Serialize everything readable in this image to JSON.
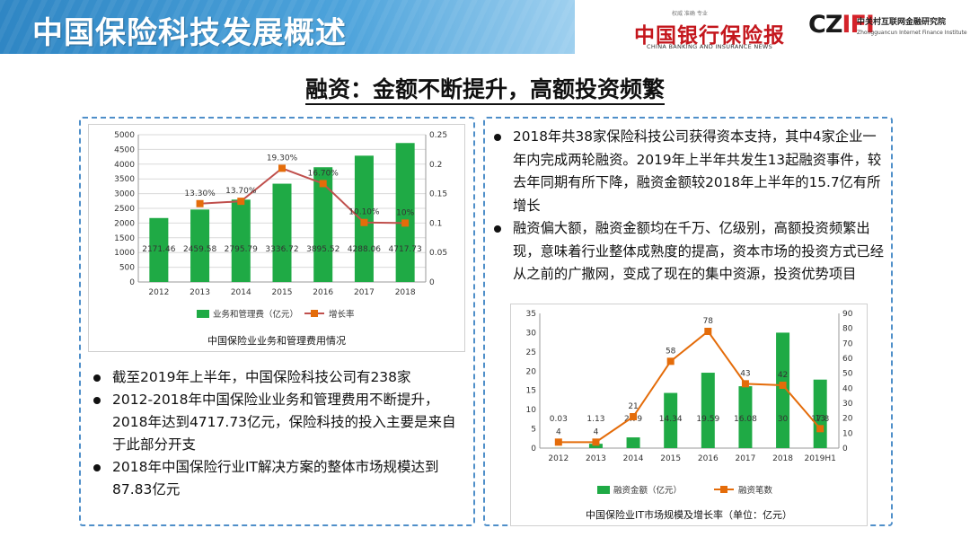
{
  "header": {
    "title": "中国保险科技发展概述"
  },
  "logos": {
    "cbin_tagline": "权威 准确 专业",
    "cbin_name": "中国银行保险报",
    "cbin_en": "CHINA BANKING AND INSURANCE NEWS",
    "czifi_mark_a": "CZ",
    "czifi_mark_b": "IFI",
    "czifi_name": "中关村互联网金融研究院",
    "czifi_en": "Zhongguancun Internet Finance Institute"
  },
  "subtitle": "融资：金额不断提升，高额投资频繁",
  "left_bullets": [
    "截至2019年上半年，中国保险科技公司有238家",
    "2012-2018年中国保险业业务和管理费用不断提升，2018年达到4717.73亿元，保险科技的投入主要是来自于此部分开支",
    "2018年中国保险行业IT解决方案的整体市场规模达到87.83亿元"
  ],
  "right_bullets": [
    "2018年共38家保险科技公司获得资本支持，其中4家企业一年内完成两轮融资。2019年上半年共发生13起融资事件，较去年同期有所下降，融资金额较2018年上半年的15.7亿有所增长",
    "融资偏大额，融资金额均在千万、亿级别，高额投资频繁出现，意味着行业整体成熟度的提高，资本市场的投资方式已经从之前的广撒网，变成了现在的集中资源，投资优势项目"
  ],
  "chart_data": [
    {
      "type": "bar",
      "title": "中国保险业业务和管理费用情况",
      "categories": [
        "2012",
        "2013",
        "2014",
        "2015",
        "2016",
        "2017",
        "2018"
      ],
      "series": [
        {
          "name": "业务和管理费（亿元）",
          "type": "bar",
          "axis": "left",
          "values": [
            2171.46,
            2459.58,
            2795.79,
            3336.72,
            3895.52,
            4288.06,
            4717.73
          ],
          "labels": [
            "2171.46",
            "2459.58",
            "2795.79",
            "3336.72",
            "3895.52",
            "4288.06",
            "4717.73"
          ]
        },
        {
          "name": "增长率",
          "type": "line",
          "axis": "right",
          "values": [
            null,
            0.133,
            0.137,
            0.193,
            0.167,
            0.101,
            0.1
          ],
          "labels": [
            "",
            "13.30%",
            "13.70%",
            "19.30%",
            "16.70%",
            "10.10%",
            "10%"
          ]
        }
      ],
      "ylim_left": [
        0,
        5000
      ],
      "yticks_left": [
        "0",
        "500",
        "1000",
        "1500",
        "2000",
        "2500",
        "3000",
        "3500",
        "4000",
        "4500",
        "5000"
      ],
      "ylim_right": [
        0,
        0.25
      ],
      "yticks_right": [
        "0",
        "0.05",
        "0.1",
        "0.15",
        "0.2",
        "0.25"
      ],
      "grid": true,
      "legend": "bottom",
      "colors": {
        "bar": "#1faa45",
        "line": "#c0504d",
        "marker": "#e46c0a"
      }
    },
    {
      "type": "bar",
      "title": "中国保险业IT市场规模及增长率（单位：亿元）",
      "categories": [
        "2012",
        "2013",
        "2014",
        "2015",
        "2016",
        "2017",
        "2018",
        "2019H1"
      ],
      "series": [
        {
          "name": "融资金额（亿元）",
          "type": "bar",
          "axis": "left",
          "values": [
            0.03,
            1.13,
            2.79,
            14.34,
            19.59,
            16.08,
            30,
            17.8
          ],
          "labels": [
            "0.03",
            "1.13",
            "2.79",
            "14.34",
            "19.59",
            "16.08",
            "30",
            "17.8"
          ]
        },
        {
          "name": "融资笔数",
          "type": "line",
          "axis": "right",
          "values": [
            4,
            4,
            21,
            58,
            78,
            43,
            42,
            13
          ],
          "labels": [
            "4",
            "4",
            "21",
            "58",
            "78",
            "43",
            "42",
            "13"
          ]
        }
      ],
      "ylim_left": [
        0,
        35
      ],
      "yticks_left": [
        "0",
        "5",
        "10",
        "15",
        "20",
        "25",
        "30",
        "35"
      ],
      "ylim_right": [
        0,
        90
      ],
      "yticks_right": [
        "0",
        "10",
        "20",
        "30",
        "40",
        "50",
        "60",
        "70",
        "80",
        "90"
      ],
      "grid": false,
      "legend": "bottom",
      "colors": {
        "bar": "#1faa45",
        "line": "#e46c0a",
        "marker": "#e46c0a"
      }
    }
  ]
}
